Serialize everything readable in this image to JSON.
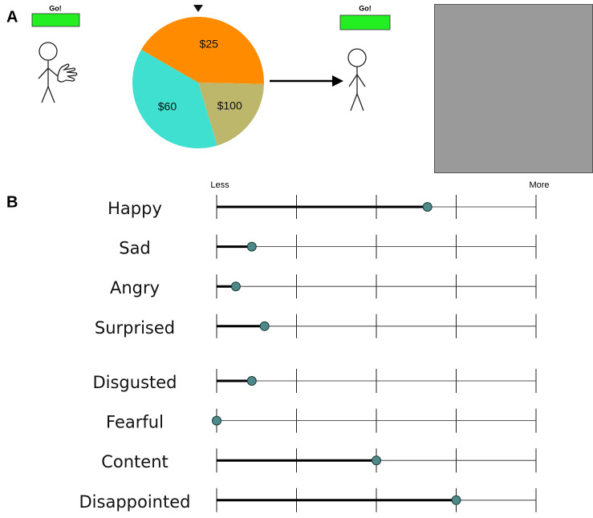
{
  "panel_a": {
    "label": "A",
    "left_button": "Go!",
    "right_button": "Go!",
    "pie": {
      "slices": [
        {
          "label": "$25",
          "share": 42,
          "color": "#ff8c00"
        },
        {
          "label": "$100",
          "share": 20,
          "color": "#bdb76b"
        },
        {
          "label": "$60",
          "share": 38,
          "color": "#40e0d0"
        }
      ]
    }
  },
  "panel_b": {
    "label": "B",
    "min_label": "Less",
    "max_label": "More",
    "range": [
      0,
      100
    ],
    "ticks": [
      0,
      25,
      50,
      75,
      100
    ],
    "items": [
      {
        "label": "Happy",
        "value": 66
      },
      {
        "label": "Sad",
        "value": 11
      },
      {
        "label": "Angry",
        "value": 6
      },
      {
        "label": "Surprised",
        "value": 15
      },
      {
        "label": "Disgusted",
        "value": 11
      },
      {
        "label": "Fearful",
        "value": 0
      },
      {
        "label": "Content",
        "value": 50
      },
      {
        "label": "Disappointed",
        "value": 75
      }
    ]
  }
}
